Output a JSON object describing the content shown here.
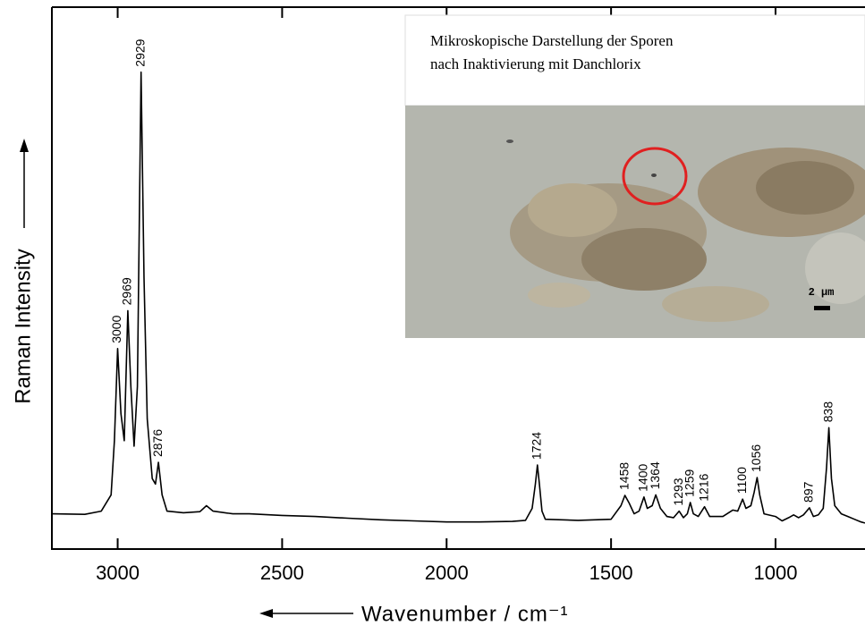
{
  "chart_data": {
    "type": "line",
    "x_label": "Wavenumber / cm⁻¹",
    "y_label": "Raman Intensity",
    "x": [
      3200,
      3100,
      3050,
      3020,
      3010,
      3000,
      2990,
      2980,
      2969,
      2960,
      2950,
      2940,
      2929,
      2920,
      2910,
      2895,
      2885,
      2876,
      2865,
      2850,
      2800,
      2750,
      2730,
      2710,
      2650,
      2600,
      2500,
      2400,
      2300,
      2200,
      2100,
      2000,
      1900,
      1800,
      1760,
      1740,
      1730,
      1724,
      1718,
      1710,
      1700,
      1600,
      1500,
      1470,
      1458,
      1445,
      1430,
      1415,
      1400,
      1390,
      1375,
      1364,
      1350,
      1330,
      1310,
      1293,
      1280,
      1268,
      1259,
      1250,
      1235,
      1216,
      1200,
      1160,
      1130,
      1115,
      1100,
      1090,
      1075,
      1065,
      1056,
      1048,
      1035,
      1000,
      980,
      960,
      945,
      930,
      915,
      897,
      885,
      870,
      855,
      845,
      838,
      830,
      820,
      800,
      780,
      760,
      740,
      728
    ],
    "values": [
      6.5,
      6.4,
      7,
      10,
      20,
      37,
      25,
      20,
      44,
      30,
      19,
      30,
      88,
      50,
      24,
      13,
      12,
      16,
      10,
      7,
      6.7,
      6.9,
      8,
      7,
      6.5,
      6.5,
      6.2,
      6.0,
      5.7,
      5.4,
      5.2,
      5.0,
      5.0,
      5.1,
      5.3,
      7.5,
      12,
      15.5,
      12,
      7,
      5.5,
      5.3,
      5.5,
      8,
      9.9,
      8.5,
      6.5,
      7,
      9.6,
      7.5,
      8,
      10,
      7.5,
      6,
      5.8,
      7,
      5.8,
      6.5,
      8.6,
      6.5,
      6,
      7.8,
      6,
      6,
      7.2,
      7,
      9.2,
      7.5,
      8,
      10.5,
      13.2,
      10,
      6.5,
      6,
      5.2,
      5.8,
      6.3,
      5.8,
      6.3,
      7.6,
      6,
      6.3,
      7.5,
      15,
      22.4,
      13,
      8,
      6.5,
      6,
      5.5,
      5,
      4.8
    ],
    "color": "#000000",
    "xlim": [
      3200,
      728
    ],
    "xticks": [
      3000,
      2500,
      2000,
      1500,
      1000
    ],
    "ylim": [
      0,
      100
    ],
    "peaks": {
      "x": [
        3000,
        2969,
        2929,
        2876,
        1724,
        1458,
        1400,
        1364,
        1293,
        1259,
        1216,
        1100,
        1056,
        897,
        838
      ],
      "y": [
        37,
        44,
        88,
        16,
        15.5,
        9.9,
        9.6,
        10,
        7,
        8.6,
        7.8,
        9.2,
        13.2,
        7.6,
        22.4
      ]
    },
    "annotations": [
      "Mikroskopische Darstellung der Sporen",
      "nach Inaktivierung mit Danchlorix",
      "2 µm"
    ]
  }
}
